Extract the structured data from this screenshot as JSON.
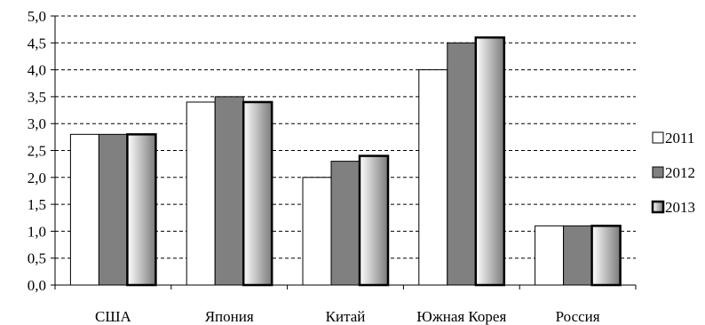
{
  "chart_data": {
    "type": "bar",
    "categories": [
      "США",
      "Япония",
      "Китай",
      "Южная Корея",
      "Россия"
    ],
    "series": [
      {
        "name": "2011",
        "values": [
          2.8,
          3.4,
          2.0,
          4.0,
          1.1
        ],
        "style": "white"
      },
      {
        "name": "2012",
        "values": [
          2.8,
          3.5,
          2.3,
          4.5,
          1.1
        ],
        "style": "gray"
      },
      {
        "name": "2013",
        "values": [
          2.8,
          3.4,
          2.4,
          4.6,
          1.1
        ],
        "style": "gradient"
      }
    ],
    "ylim": [
      0,
      5.0
    ],
    "yticks": [
      "0,0",
      "0,5",
      "1,0",
      "1,5",
      "2,0",
      "2,5",
      "3,0",
      "3,5",
      "4,0",
      "4,5",
      "5,0"
    ],
    "grid": "dashed-horizontal",
    "legend_position": "right",
    "colors": {
      "white": "#ffffff",
      "gray": "#808080",
      "gradient_start": "#ffffff",
      "gradient_end": "#808080"
    }
  }
}
